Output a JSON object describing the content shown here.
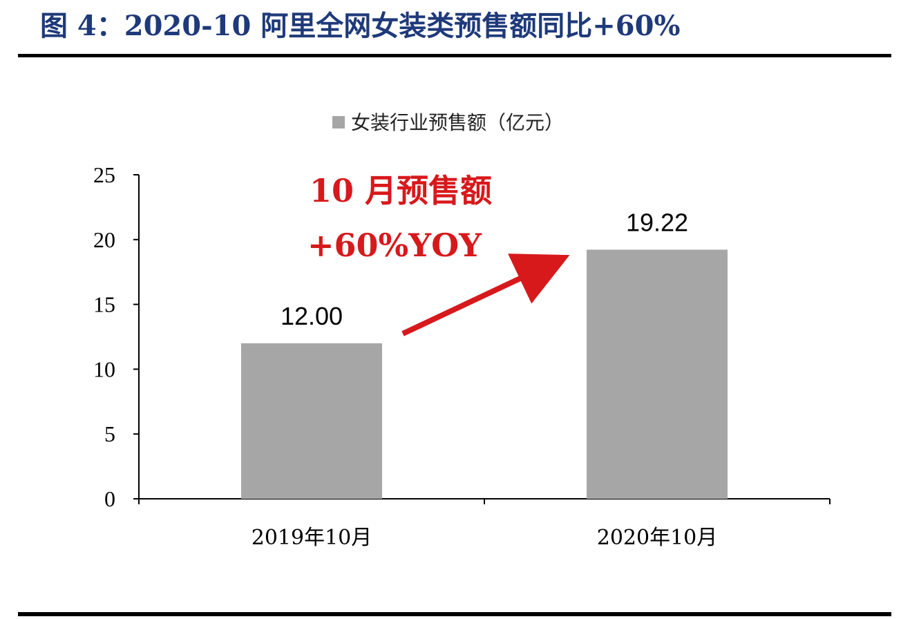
{
  "figure": {
    "title": "图 4：2020-10 阿里全网女装类预售额同比+60%"
  },
  "chart_data": {
    "type": "bar",
    "categories": [
      "2019年10月",
      "2020年10月"
    ],
    "series": [
      {
        "name": "女装行业预售额（亿元）",
        "values": [
          12.0,
          19.22
        ],
        "value_labels": [
          "12.00",
          "19.22"
        ],
        "color": "#a6a6a6"
      }
    ],
    "ylim": [
      0,
      25
    ],
    "yticks": [
      0,
      5,
      10,
      15,
      20,
      25
    ],
    "ytick_labels": [
      "0",
      "5",
      "10",
      "15",
      "20",
      "25"
    ],
    "grid": false,
    "legend_position": "top-center",
    "annotation": {
      "lines": [
        "10 月预售额",
        "+60%YOY"
      ],
      "color": "#d7191c",
      "arrow": "from 2019年10月 bar up to 2020年10月 bar"
    }
  }
}
